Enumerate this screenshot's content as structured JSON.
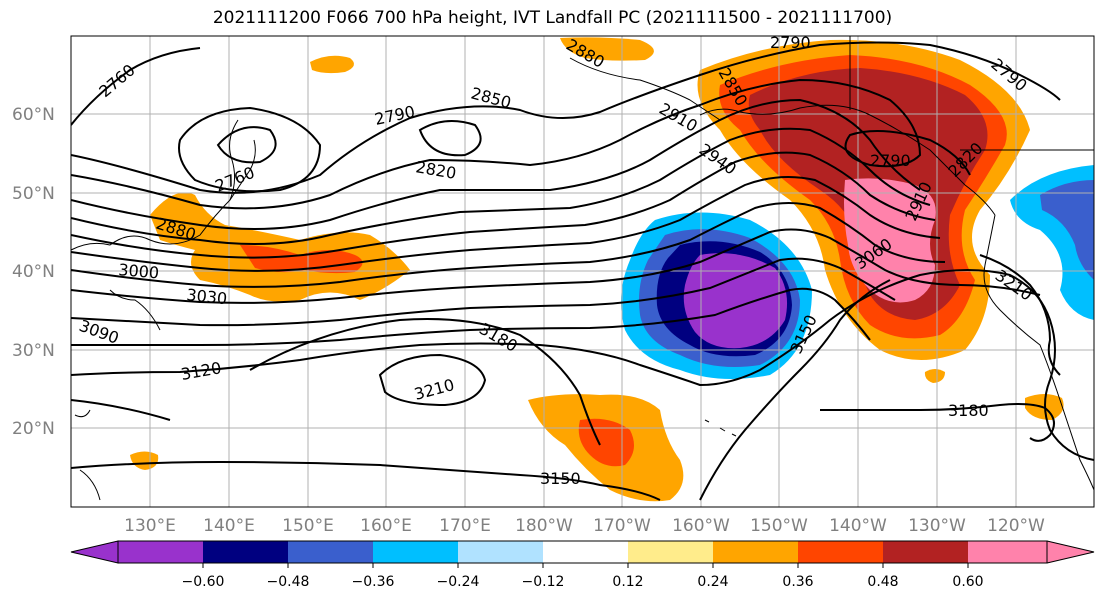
{
  "title": "2021111200 F066 700 hPa height, IVT Landfall PC (2021111500 - 2021111700)",
  "latitude_labels": [
    "60°N",
    "50°N",
    "40°N",
    "30°N",
    "20°N"
  ],
  "longitude_labels": [
    "130°E",
    "140°E",
    "150°E",
    "160°E",
    "170°E",
    "180°W",
    "170°W",
    "160°W",
    "150°W",
    "140°W",
    "130°W",
    "120°W"
  ],
  "contour_labels": [
    "2760",
    "2760",
    "2790",
    "2790",
    "2790",
    "2790",
    "2820",
    "2820",
    "2850",
    "2850",
    "2880",
    "2880",
    "2910",
    "2910",
    "2940",
    "3000",
    "3030",
    "3060",
    "3090",
    "3120",
    "3150",
    "3150",
    "3180",
    "3180",
    "3210",
    "3210"
  ],
  "colorbar": {
    "tick_labels": [
      "−0.60",
      "−0.48",
      "−0.36",
      "−0.24",
      "−0.12",
      "0.12",
      "0.24",
      "0.36",
      "0.48",
      "0.60"
    ],
    "colors": [
      "#9932cc",
      "#000080",
      "#3a5fcd",
      "#00bfff",
      "#b0e2ff",
      "#ffffff",
      "#ffec8b",
      "#ffa500",
      "#ff4500",
      "#b22222",
      "#ff82ab"
    ]
  }
}
